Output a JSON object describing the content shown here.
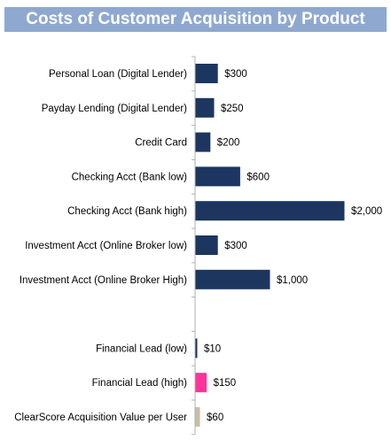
{
  "chart_data": {
    "type": "bar",
    "orientation": "horizontal",
    "title": "Costs of Customer Acquisition by Product",
    "xlim": [
      0,
      2000
    ],
    "grid": false,
    "legend": "none",
    "bars": [
      {
        "category": "Personal Loan (Digital Lender)",
        "value": 300,
        "label": "$300",
        "color": "#1c3660"
      },
      {
        "category": "Payday Lending (Digital Lender)",
        "value": 250,
        "label": "$250",
        "color": "#1c3660"
      },
      {
        "category": "Credit Card",
        "value": 200,
        "label": "$200",
        "color": "#1c3660"
      },
      {
        "category": "Checking Acct (Bank low)",
        "value": 600,
        "label": "$600",
        "color": "#1c3660"
      },
      {
        "category": "Checking Acct (Bank high)",
        "value": 2000,
        "label": "$2,000",
        "color": "#1c3660"
      },
      {
        "category": "Investment Acct (Online Broker low)",
        "value": 300,
        "label": "$300",
        "color": "#1c3660"
      },
      {
        "category": "Investment Acct (Online Broker High)",
        "value": 1000,
        "label": "$1,000",
        "color": "#1c3660"
      },
      {
        "category": "",
        "value": null,
        "label": "",
        "color": ""
      },
      {
        "category": "Financial Lead (low)",
        "value": 10,
        "label": "$10",
        "color": "#1c3660"
      },
      {
        "category": "Financial Lead (high)",
        "value": 150,
        "label": "$150",
        "color": "#ff3399"
      },
      {
        "category": "ClearScore Acquisition Value per User",
        "value": 60,
        "label": "$60",
        "color": "#c4c0a8"
      }
    ]
  }
}
